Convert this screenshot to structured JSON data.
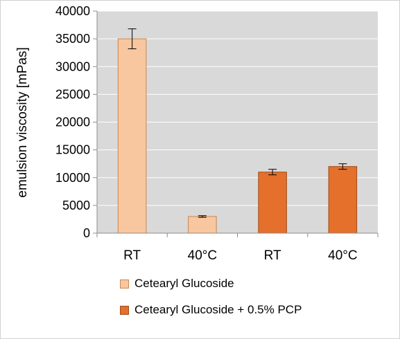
{
  "chart_data": {
    "type": "bar",
    "title": "",
    "ylabel": "emulsion viscosity [mPas]",
    "xlabel": "",
    "ylim": [
      0,
      40000
    ],
    "yticks": [
      0,
      5000,
      10000,
      15000,
      20000,
      25000,
      30000,
      35000,
      40000
    ],
    "grid": true,
    "legend_position": "bottom",
    "categories": [
      "RT",
      "40°C",
      "RT",
      "40°C"
    ],
    "series": [
      {
        "name": "Cetearyl Glucoside",
        "color": "#f8c79f",
        "edge": "#c8864f",
        "values": [
          35000,
          3000,
          null,
          null
        ],
        "errors": [
          1800,
          150,
          null,
          null
        ]
      },
      {
        "name": "Cetearyl Glucoside + 0.5% PCP",
        "color": "#e4702c",
        "edge": "#9f4a18",
        "values": [
          null,
          null,
          11000,
          12000
        ],
        "errors": [
          null,
          null,
          500,
          500
        ]
      }
    ]
  }
}
